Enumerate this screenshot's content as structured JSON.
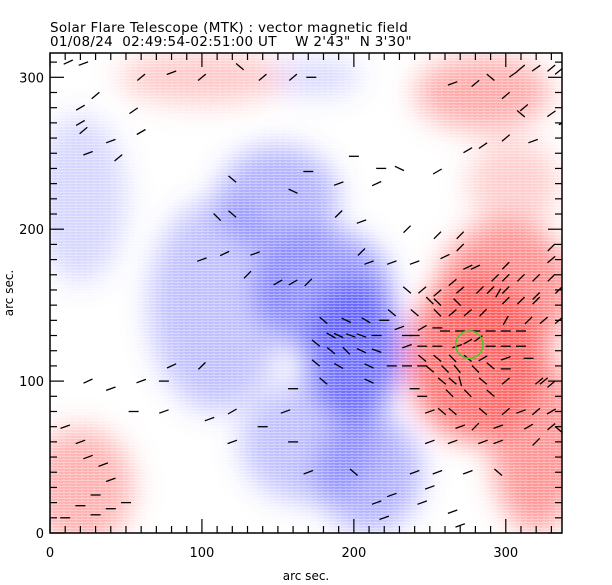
{
  "header": {
    "title_line1": "Solar Flare Telescope (MTK) : vector magnetic field",
    "title_line2": "01/08/24  02:49:54-02:51:00 UT    W 2'43\"  N 3'30\""
  },
  "colors": {
    "positive": "#ff5a5a",
    "negative": "#5a5aff",
    "contour": "#44cc22",
    "arrow": "#000000"
  },
  "chart_data": {
    "type": "heatmap",
    "title": "Solar Flare Telescope (MTK) : vector magnetic field",
    "subtitle": "01/08/24  02:49:54-02:51:00 UT    W 2'43\"  N 3'30\"",
    "xlabel": "arc sec.",
    "ylabel": "arc sec.",
    "xlim": [
      0,
      337
    ],
    "ylim": [
      0,
      316
    ],
    "x_major_ticks": [
      0,
      100,
      200,
      300
    ],
    "y_major_ticks": [
      0,
      100,
      200,
      300
    ],
    "x_tick_labels": [
      "0",
      "100",
      "200",
      "300"
    ],
    "y_tick_labels": [
      "0",
      "100",
      "200",
      "300"
    ],
    "minor_tick_step": 10,
    "grid": false,
    "legend": "none",
    "field_blobs": [
      {
        "sign": "negative",
        "cx": 200,
        "cy": 120,
        "rx": 32,
        "ry": 45,
        "strength": 1.0
      },
      {
        "sign": "negative",
        "cx": 180,
        "cy": 160,
        "rx": 45,
        "ry": 40,
        "strength": 0.75
      },
      {
        "sign": "negative",
        "cx": 150,
        "cy": 220,
        "rx": 40,
        "ry": 35,
        "strength": 0.55
      },
      {
        "sign": "negative",
        "cx": 110,
        "cy": 150,
        "rx": 45,
        "ry": 70,
        "strength": 0.45
      },
      {
        "sign": "negative",
        "cx": 210,
        "cy": 40,
        "rx": 35,
        "ry": 40,
        "strength": 0.55
      },
      {
        "sign": "negative",
        "cx": 170,
        "cy": 60,
        "rx": 45,
        "ry": 40,
        "strength": 0.45
      },
      {
        "sign": "negative",
        "cx": 20,
        "cy": 220,
        "rx": 30,
        "ry": 55,
        "strength": 0.3
      },
      {
        "sign": "negative",
        "cx": 175,
        "cy": 300,
        "rx": 30,
        "ry": 12,
        "strength": 0.3
      },
      {
        "sign": "positive",
        "cx": 280,
        "cy": 115,
        "rx": 45,
        "ry": 55,
        "strength": 1.0
      },
      {
        "sign": "positive",
        "cx": 300,
        "cy": 160,
        "rx": 45,
        "ry": 45,
        "strength": 0.8
      },
      {
        "sign": "positive",
        "cx": 320,
        "cy": 60,
        "rx": 30,
        "ry": 60,
        "strength": 0.75
      },
      {
        "sign": "positive",
        "cx": 285,
        "cy": 290,
        "rx": 45,
        "ry": 25,
        "strength": 0.6
      },
      {
        "sign": "positive",
        "cx": 100,
        "cy": 300,
        "rx": 55,
        "ry": 18,
        "strength": 0.4
      },
      {
        "sign": "positive",
        "cx": 20,
        "cy": 30,
        "rx": 35,
        "ry": 40,
        "strength": 0.55
      },
      {
        "sign": "positive",
        "cx": 305,
        "cy": 230,
        "rx": 30,
        "ry": 30,
        "strength": 0.35
      }
    ],
    "contour": {
      "label": "green contour",
      "cx": 276,
      "cy": 124,
      "rx": 9,
      "ry": 9
    },
    "vectors": [
      [
        12,
        310,
        25
      ],
      [
        22,
        309,
        20
      ],
      [
        60,
        300,
        40
      ],
      [
        80,
        303,
        20
      ],
      [
        100,
        300,
        40
      ],
      [
        125,
        307,
        -40
      ],
      [
        140,
        300,
        40
      ],
      [
        160,
        300,
        40
      ],
      [
        172,
        300,
        0
      ],
      [
        30,
        288,
        40
      ],
      [
        20,
        280,
        30
      ],
      [
        20,
        270,
        30
      ],
      [
        22,
        265,
        40
      ],
      [
        60,
        264,
        30
      ],
      [
        40,
        258,
        20
      ],
      [
        25,
        250,
        20
      ],
      [
        45,
        247,
        40
      ],
      [
        55,
        278,
        35
      ],
      [
        200,
        248,
        0
      ],
      [
        218,
        240,
        0
      ],
      [
        230,
        240,
        -25
      ],
      [
        255,
        238,
        30
      ],
      [
        275,
        252,
        30
      ],
      [
        285,
        255,
        35
      ],
      [
        300,
        260,
        40
      ],
      [
        310,
        306,
        40
      ],
      [
        320,
        306,
        35
      ],
      [
        330,
        306,
        40
      ],
      [
        335,
        304,
        40
      ],
      [
        305,
        302,
        35
      ],
      [
        290,
        300,
        -40
      ],
      [
        280,
        296,
        40
      ],
      [
        265,
        296,
        20
      ],
      [
        300,
        288,
        40
      ],
      [
        312,
        280,
        40
      ],
      [
        310,
        276,
        -40
      ],
      [
        330,
        276,
        35
      ],
      [
        318,
        258,
        20
      ],
      [
        338,
        270,
        20
      ],
      [
        120,
        233,
        -40
      ],
      [
        170,
        238,
        0
      ],
      [
        190,
        230,
        20
      ],
      [
        160,
        225,
        -25
      ],
      [
        215,
        230,
        25
      ],
      [
        110,
        208,
        -45
      ],
      [
        120,
        210,
        -40
      ],
      [
        190,
        210,
        45
      ],
      [
        205,
        205,
        20
      ],
      [
        270,
        196,
        45
      ],
      [
        270,
        188,
        45
      ],
      [
        330,
        188,
        45
      ],
      [
        330,
        180,
        40
      ],
      [
        300,
        176,
        45
      ],
      [
        293,
        168,
        45
      ],
      [
        300,
        168,
        45
      ],
      [
        310,
        168,
        45
      ],
      [
        320,
        168,
        45
      ],
      [
        330,
        168,
        45
      ],
      [
        345,
        180,
        40
      ],
      [
        340,
        168,
        45
      ],
      [
        265,
        165,
        40
      ],
      [
        290,
        160,
        45
      ],
      [
        300,
        160,
        45
      ],
      [
        320,
        156,
        45
      ],
      [
        335,
        160,
        45
      ],
      [
        235,
        200,
        45
      ],
      [
        255,
        196,
        45
      ],
      [
        260,
        182,
        25
      ],
      [
        275,
        175,
        25
      ],
      [
        280,
        175,
        25
      ],
      [
        250,
        153,
        -45
      ],
      [
        255,
        152,
        -45
      ],
      [
        268,
        152,
        -45
      ],
      [
        300,
        153,
        45
      ],
      [
        310,
        153,
        45
      ],
      [
        320,
        153,
        45
      ],
      [
        235,
        160,
        -40
      ],
      [
        245,
        160,
        40
      ],
      [
        255,
        158,
        40
      ],
      [
        270,
        160,
        40
      ],
      [
        283,
        160,
        45
      ],
      [
        295,
        158,
        60
      ],
      [
        225,
        145,
        -40
      ],
      [
        240,
        145,
        -40
      ],
      [
        255,
        145,
        -45
      ],
      [
        265,
        145,
        40
      ],
      [
        275,
        145,
        40
      ],
      [
        285,
        145,
        45
      ],
      [
        300,
        140,
        60
      ],
      [
        315,
        140,
        45
      ],
      [
        325,
        140,
        40
      ],
      [
        335,
        140,
        40
      ],
      [
        150,
        165,
        30
      ],
      [
        160,
        165,
        30
      ],
      [
        170,
        165,
        45
      ],
      [
        130,
        170,
        45
      ],
      [
        100,
        180,
        20
      ],
      [
        115,
        184,
        25
      ],
      [
        135,
        184,
        20
      ],
      [
        205,
        185,
        45
      ],
      [
        210,
        178,
        20
      ],
      [
        225,
        178,
        20
      ],
      [
        240,
        178,
        20
      ],
      [
        180,
        140,
        -40
      ],
      [
        195,
        140,
        -25
      ],
      [
        208,
        140,
        -30
      ],
      [
        220,
        140,
        0
      ],
      [
        185,
        130,
        -30
      ],
      [
        190,
        130,
        -25
      ],
      [
        198,
        130,
        -20
      ],
      [
        205,
        130,
        -20
      ],
      [
        215,
        130,
        0
      ],
      [
        175,
        125,
        -40
      ],
      [
        185,
        120,
        -40
      ],
      [
        195,
        120,
        -45
      ],
      [
        205,
        120,
        -25
      ],
      [
        215,
        120,
        -20
      ],
      [
        230,
        135,
        20
      ],
      [
        245,
        135,
        30
      ],
      [
        255,
        135,
        0
      ],
      [
        190,
        110,
        -30
      ],
      [
        210,
        110,
        -25
      ],
      [
        225,
        110,
        0
      ],
      [
        235,
        110,
        0
      ],
      [
        245,
        110,
        0
      ],
      [
        175,
        112,
        -40
      ],
      [
        180,
        100,
        -40
      ],
      [
        210,
        100,
        -25
      ],
      [
        160,
        95,
        0
      ],
      [
        235,
        130,
        0
      ],
      [
        240,
        130,
        0
      ],
      [
        260,
        133,
        0
      ],
      [
        270,
        133,
        0
      ],
      [
        280,
        133,
        0
      ],
      [
        290,
        133,
        0
      ],
      [
        300,
        133,
        0
      ],
      [
        310,
        133,
        0
      ],
      [
        235,
        123,
        20
      ],
      [
        245,
        123,
        0
      ],
      [
        255,
        123,
        0
      ],
      [
        268,
        123,
        20
      ],
      [
        275,
        126,
        30
      ],
      [
        282,
        128,
        35
      ],
      [
        290,
        123,
        0
      ],
      [
        300,
        123,
        0
      ],
      [
        310,
        123,
        0
      ],
      [
        245,
        115,
        -40
      ],
      [
        255,
        115,
        -40
      ],
      [
        265,
        115,
        -45
      ],
      [
        275,
        115,
        -40
      ],
      [
        285,
        115,
        30
      ],
      [
        300,
        115,
        20
      ],
      [
        315,
        115,
        0
      ],
      [
        250,
        108,
        -40
      ],
      [
        260,
        108,
        -45
      ],
      [
        268,
        108,
        -50
      ],
      [
        280,
        108,
        -45
      ],
      [
        290,
        110,
        -40
      ],
      [
        300,
        108,
        0
      ],
      [
        258,
        100,
        -40
      ],
      [
        265,
        100,
        -40
      ],
      [
        270,
        100,
        -75
      ],
      [
        285,
        100,
        -40
      ],
      [
        300,
        100,
        40
      ],
      [
        322,
        100,
        40
      ],
      [
        263,
        92,
        -45
      ],
      [
        275,
        92,
        -45
      ],
      [
        290,
        92,
        -40
      ],
      [
        325,
        100,
        40
      ],
      [
        330,
        98,
        40
      ],
      [
        258,
        80,
        -40
      ],
      [
        265,
        80,
        -40
      ],
      [
        285,
        80,
        -40
      ],
      [
        300,
        80,
        40
      ],
      [
        310,
        80,
        20
      ],
      [
        320,
        80,
        40
      ],
      [
        330,
        80,
        30
      ],
      [
        240,
        95,
        0
      ],
      [
        245,
        90,
        0
      ],
      [
        250,
        80,
        20
      ],
      [
        270,
        70,
        20
      ],
      [
        280,
        70,
        45
      ],
      [
        295,
        70,
        20
      ],
      [
        315,
        70,
        30
      ],
      [
        330,
        70,
        40
      ],
      [
        335,
        68,
        -40
      ],
      [
        250,
        60,
        20
      ],
      [
        265,
        60,
        20
      ],
      [
        285,
        60,
        20
      ],
      [
        295,
        60,
        20
      ],
      [
        320,
        60,
        45
      ],
      [
        240,
        40,
        20
      ],
      [
        255,
        40,
        20
      ],
      [
        275,
        40,
        20
      ],
      [
        295,
        40,
        -40
      ],
      [
        250,
        30,
        20
      ],
      [
        245,
        20,
        20
      ],
      [
        265,
        14,
        20
      ],
      [
        270,
        5,
        20
      ],
      [
        10,
        70,
        20
      ],
      [
        20,
        60,
        20
      ],
      [
        25,
        50,
        20
      ],
      [
        35,
        45,
        20
      ],
      [
        40,
        35,
        20
      ],
      [
        30,
        25,
        0
      ],
      [
        20,
        18,
        0
      ],
      [
        40,
        16,
        0
      ],
      [
        25,
        100,
        25
      ],
      [
        40,
        95,
        20
      ],
      [
        60,
        100,
        20
      ],
      [
        75,
        100,
        0
      ],
      [
        105,
        75,
        20
      ],
      [
        120,
        60,
        20
      ],
      [
        55,
        80,
        0
      ],
      [
        75,
        80,
        20
      ],
      [
        80,
        110,
        25
      ],
      [
        100,
        110,
        45
      ],
      [
        120,
        80,
        30
      ],
      [
        140,
        70,
        0
      ],
      [
        155,
        80,
        20
      ],
      [
        160,
        60,
        0
      ],
      [
        170,
        40,
        20
      ],
      [
        200,
        40,
        -40
      ],
      [
        215,
        20,
        20
      ],
      [
        220,
        10,
        20
      ],
      [
        225,
        25,
        20
      ],
      [
        50,
        20,
        0
      ],
      [
        30,
        12,
        0
      ],
      [
        10,
        10,
        0
      ]
    ]
  }
}
